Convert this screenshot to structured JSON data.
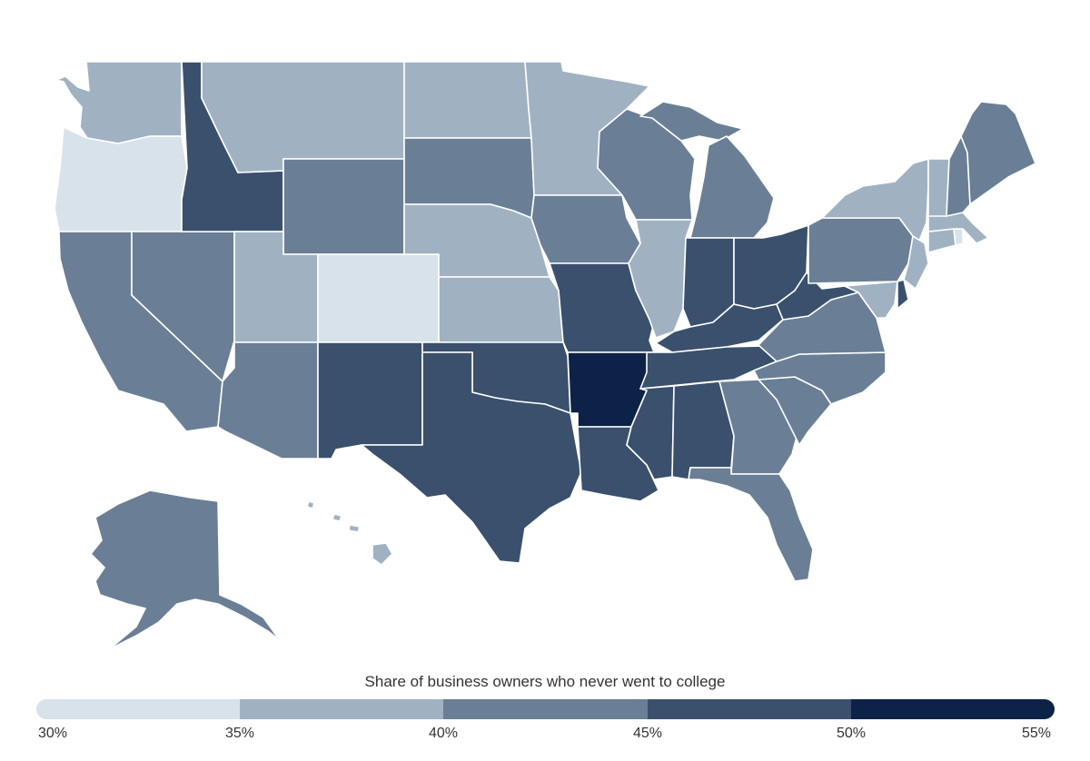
{
  "legend": {
    "title": "Share of business owners who never went to college",
    "ticks": [
      "30%",
      "35%",
      "40%",
      "45%",
      "50%",
      "55%"
    ],
    "bins": [
      {
        "range": "30%–35%",
        "color": "#d8e2ea"
      },
      {
        "range": "35%–40%",
        "color": "#a0b2c2"
      },
      {
        "range": "40%–45%",
        "color": "#6a7f95"
      },
      {
        "range": "45%–50%",
        "color": "#3a506d"
      },
      {
        "range": "50%–55%",
        "color": "#0c2247"
      }
    ]
  },
  "states": [
    {
      "name": "Washington",
      "bin": 1
    },
    {
      "name": "Oregon",
      "bin": 0
    },
    {
      "name": "California",
      "bin": 2
    },
    {
      "name": "Nevada",
      "bin": 2
    },
    {
      "name": "Idaho",
      "bin": 3
    },
    {
      "name": "Montana",
      "bin": 1
    },
    {
      "name": "Wyoming",
      "bin": 2
    },
    {
      "name": "Utah",
      "bin": 1
    },
    {
      "name": "Arizona",
      "bin": 2
    },
    {
      "name": "Colorado",
      "bin": 0
    },
    {
      "name": "New Mexico",
      "bin": 3
    },
    {
      "name": "North Dakota",
      "bin": 1
    },
    {
      "name": "South Dakota",
      "bin": 2
    },
    {
      "name": "Nebraska",
      "bin": 1
    },
    {
      "name": "Kansas",
      "bin": 1
    },
    {
      "name": "Oklahoma",
      "bin": 3
    },
    {
      "name": "Texas",
      "bin": 3
    },
    {
      "name": "Minnesota",
      "bin": 1
    },
    {
      "name": "Iowa",
      "bin": 2
    },
    {
      "name": "Missouri",
      "bin": 3
    },
    {
      "name": "Arkansas",
      "bin": 4
    },
    {
      "name": "Louisiana",
      "bin": 3
    },
    {
      "name": "Wisconsin",
      "bin": 2
    },
    {
      "name": "Illinois",
      "bin": 1
    },
    {
      "name": "Michigan",
      "bin": 2
    },
    {
      "name": "Indiana",
      "bin": 3
    },
    {
      "name": "Ohio",
      "bin": 3
    },
    {
      "name": "Kentucky",
      "bin": 3
    },
    {
      "name": "Tennessee",
      "bin": 3
    },
    {
      "name": "Mississippi",
      "bin": 3
    },
    {
      "name": "Alabama",
      "bin": 3
    },
    {
      "name": "Georgia",
      "bin": 2
    },
    {
      "name": "Florida",
      "bin": 2
    },
    {
      "name": "South Carolina",
      "bin": 2
    },
    {
      "name": "North Carolina",
      "bin": 2
    },
    {
      "name": "Virginia",
      "bin": 2
    },
    {
      "name": "West Virginia",
      "bin": 3
    },
    {
      "name": "Pennsylvania",
      "bin": 2
    },
    {
      "name": "New York",
      "bin": 1
    },
    {
      "name": "New Jersey",
      "bin": 1
    },
    {
      "name": "Delaware",
      "bin": 3
    },
    {
      "name": "Maryland",
      "bin": 1
    },
    {
      "name": "Connecticut",
      "bin": 1
    },
    {
      "name": "Rhode Island",
      "bin": 0
    },
    {
      "name": "Massachusetts",
      "bin": 1
    },
    {
      "name": "Vermont",
      "bin": 1
    },
    {
      "name": "New Hampshire",
      "bin": 2
    },
    {
      "name": "Maine",
      "bin": 2
    },
    {
      "name": "Alaska",
      "bin": 2
    },
    {
      "name": "Hawaii",
      "bin": 1
    }
  ]
}
